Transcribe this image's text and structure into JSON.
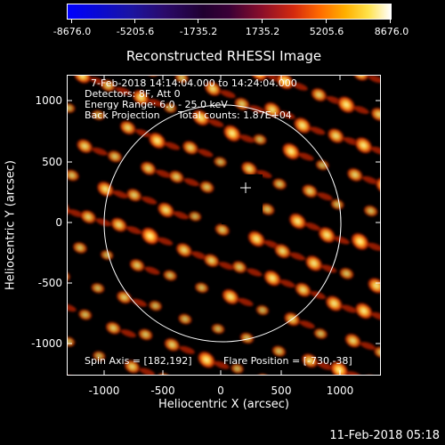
{
  "colorbar": {
    "labels": [
      "-8676.0",
      "-5205.6",
      "-1735.2",
      "1735.2",
      "5205.6",
      "8676.0"
    ]
  },
  "title": "Reconstructed RHESSI Image",
  "info": {
    "time_range": "7-Feb-2018 14:14:04.000 to 14:24:04.000",
    "detectors": "Detectors: 8F, Att 0",
    "energy": "Energy Range: 6.0 - 25.0 keV",
    "method": "Back Projection",
    "counts": "Total counts: 1.87E+04",
    "spin_axis": "Spin Axis = [182,192]",
    "flare_position": "Flare Position = [-730,-38]"
  },
  "axes": {
    "xlabel": "Heliocentric X (arcsec)",
    "ylabel": "Heliocentric Y (arcsec)",
    "xticks": [
      "-1000",
      "-500",
      "0",
      "500",
      "1000"
    ],
    "yticks": [
      "1000",
      "500",
      "0",
      "-500",
      "-1000"
    ]
  },
  "footer": {
    "timestamp": "11-Feb-2018 05:18"
  },
  "colors": {
    "background": "#000000",
    "foreground": "#ffffff",
    "blob_core": "#ffe060",
    "blob_edge": "#d42a0e"
  }
}
